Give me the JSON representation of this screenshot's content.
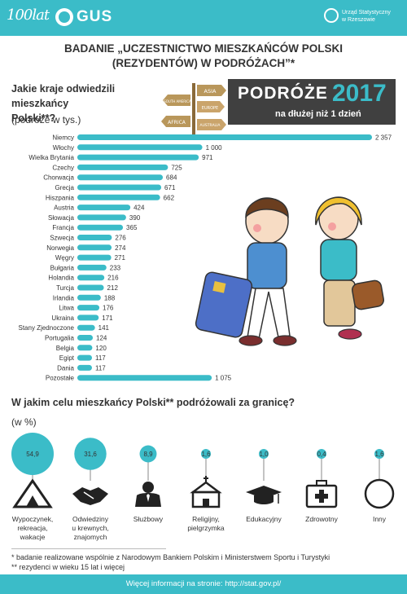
{
  "header": {
    "logo_100": "100lat",
    "logo_gus": "GUS",
    "urzad_line1": "Urząd Statystyczny",
    "urzad_line2": "w Rzeszowie"
  },
  "title": {
    "line1": "BADANIE „UCZESTNICTWO MIESZKAŃCÓW POLSKI",
    "line2": "(REZYDENTÓW) W PODRÓŻACH”*"
  },
  "banner": {
    "word": "PODRÓŻE",
    "year": "2017",
    "subtitle": "na dłużej niż 1 dzień"
  },
  "signpost": {
    "signs": [
      "ASIA",
      "SOUTH AMERICA",
      "EUROPE",
      "AFRICA",
      "AUSTRALIA"
    ]
  },
  "question1": {
    "line1": "Jakie kraje odwiedzili mieszkańcy",
    "line2": "Polski**?",
    "unit": "(podróże w tys.)"
  },
  "question2": {
    "text": "W jakim celu mieszkańcy Polski** podróżowali za granicę?",
    "unit": "(w %)"
  },
  "chart_data": [
    {
      "type": "bar",
      "orientation": "horizontal",
      "title": "Jakie kraje odwiedzili mieszkańcy Polski**?",
      "ylabel": "(podróże w tys.)",
      "categories": [
        "Niemcy",
        "Włochy",
        "Wielka Brytania",
        "Czechy",
        "Chorwacja",
        "Grecja",
        "Hiszpania",
        "Austria",
        "Słowacja",
        "Francja",
        "Szwecja",
        "Norwegia",
        "Węgry",
        "Bułgaria",
        "Holandia",
        "Turcja",
        "Irlandia",
        "Litwa",
        "Ukraina",
        "Stany Zjednoczone",
        "Portugalia",
        "Belgia",
        "Egipt",
        "Dania",
        "Pozostałe"
      ],
      "values": [
        2357,
        1000,
        971,
        725,
        684,
        671,
        662,
        424,
        390,
        365,
        276,
        274,
        271,
        233,
        216,
        212,
        188,
        176,
        171,
        141,
        124,
        120,
        117,
        117,
        1075
      ],
      "value_labels": [
        "2 357",
        "1 000",
        "971",
        "725",
        "684",
        "671",
        "662",
        "424",
        "390",
        "365",
        "276",
        "274",
        "271",
        "233",
        "216",
        "212",
        "188",
        "176",
        "171",
        "141",
        "124",
        "120",
        "117",
        "117",
        "1 075"
      ],
      "xlim": [
        0,
        2357
      ],
      "grid": false,
      "bar_color": "#3bbcc8"
    },
    {
      "type": "bubble",
      "title": "W jakim celu mieszkańcy Polski** podróżowali za granicę?",
      "ylabel": "(w %)",
      "categories": [
        "Wypoczynek, rekreacja, wakacje",
        "Odwiedziny u krewnych, znajomych",
        "Służbowy",
        "Religijny, pielgrzymka",
        "Edukacyjny",
        "Zdrowotny",
        "Inny"
      ],
      "values": [
        54.9,
        31.6,
        8.9,
        1.6,
        1.0,
        0.4,
        1.6
      ],
      "value_labels": [
        "54,9",
        "31,6",
        "8,9",
        "1,6",
        "1,0",
        "0,4",
        "1,6"
      ],
      "label_lines": [
        [
          "Wypoczynek,",
          "rekreacja,",
          "wakacje"
        ],
        [
          "Odwiedziny",
          "u krewnych,",
          "znajomych"
        ],
        [
          "Służbowy"
        ],
        [
          "Religijny,",
          "pielgrzymka"
        ],
        [
          "Edukacyjny"
        ],
        [
          "Zdrowotny"
        ],
        [
          "Inny"
        ]
      ],
      "icons": [
        "tent-icon",
        "handshake-icon",
        "businessman-icon",
        "church-icon",
        "graduation-cap-icon",
        "first-aid-kit-icon",
        "circle-icon"
      ],
      "color": "#3bbcc8"
    }
  ],
  "notes": {
    "note1": "* badanie realizowane wspólnie z Narodowym Bankiem Polskim i Ministerstwem Sportu i Turystyki",
    "note2": "** rezydenci w wieku 15 lat i więcej"
  },
  "footer": {
    "text": "Więcej informacji na stronie: http://stat.gov.pl/"
  },
  "colors": {
    "accent": "#3bbcc8",
    "dark": "#404040",
    "text": "#333333"
  }
}
